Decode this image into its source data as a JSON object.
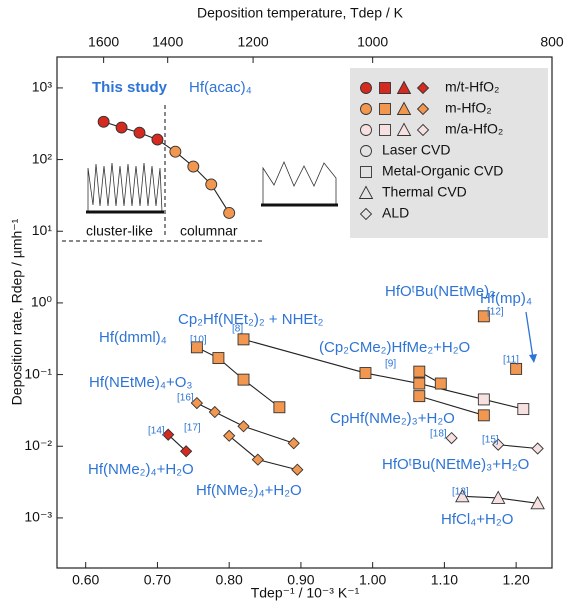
{
  "chart_data": {
    "type": "scatter",
    "title": "Deposition temperature, Tdep / K",
    "x_label": "Tdep⁻¹ / 10⁻³ K⁻¹",
    "y_label": "Deposition rate, Rdep / µmh⁻¹",
    "xlim": [
      0.56,
      1.25
    ],
    "ylim": [
      0.0002,
      2700
    ],
    "log_y": true,
    "xticks": [
      {
        "value": 0.6,
        "label": "0.60"
      },
      {
        "value": 0.7,
        "label": "0.70"
      },
      {
        "value": 0.8,
        "label": "0.80"
      },
      {
        "value": 0.9,
        "label": "0.90"
      },
      {
        "value": 1.0,
        "label": "1.00"
      },
      {
        "value": 1.1,
        "label": "1.10"
      },
      {
        "value": 1.2,
        "label": "1.20"
      }
    ],
    "x2ticks": [
      1600,
      1400,
      1200,
      1000,
      800
    ],
    "yticks": [
      {
        "value": 1000,
        "label": "10³"
      },
      {
        "value": 100,
        "label": "10²"
      },
      {
        "value": 10,
        "label": "10¹"
      },
      {
        "value": 1,
        "label": "10⁰"
      },
      {
        "value": 0.1,
        "label": "10⁻¹"
      },
      {
        "value": 0.01,
        "label": "10⁻²"
      },
      {
        "value": 0.001,
        "label": "10⁻³"
      }
    ],
    "annotations": [
      "This study",
      "Hf(acac)₄",
      "cluster-like",
      "columnar"
    ],
    "series": [
      {
        "marker": "circle",
        "line": true,
        "colors": [
          "#d42a1f",
          "#d42a1f",
          "#d42a1f",
          "#d42a1f",
          "#f2974f",
          "#f2974f",
          "#f2974f",
          "#f2974f"
        ],
        "x": [
          0.625,
          0.65,
          0.675,
          0.7,
          0.725,
          0.75,
          0.775,
          0.8
        ],
        "values": [
          337,
          280,
          237,
          190,
          129,
          80,
          45,
          18
        ]
      },
      {
        "name": "Hf(mp)₄",
        "ref": "[11]",
        "marker": "square",
        "line": false,
        "colors": [
          "#f2974f"
        ],
        "x": [
          1.2
        ],
        "values": [
          0.12
        ]
      },
      {
        "name": "HfOᵗBu(NEtMe)₃",
        "ref": "[12]",
        "marker": "square",
        "line": false,
        "colors": [
          "#f2974f"
        ],
        "x": [
          1.155
        ],
        "values": [
          0.65
        ]
      },
      {
        "name": "Cp₂Hf(NEt₂)₂ + NHEt₂",
        "ref": "[8]",
        "marker": "square",
        "line": true,
        "colors": [
          "#f2974f",
          "#f2974f",
          "#f2974f",
          "#f6e0e0",
          "#f6e0e0"
        ],
        "x": [
          0.82,
          0.99,
          1.065,
          1.155,
          1.21
        ],
        "values": [
          0.31,
          0.105,
          0.075,
          0.045,
          0.033
        ]
      },
      {
        "name": "(Cp₂CMe₂)HfMe₂+H₂O",
        "ref": "[9]",
        "marker": "square",
        "line": true,
        "colors": [
          "#f2974f",
          "#f2974f"
        ],
        "x": [
          1.065,
          1.095
        ],
        "values": [
          0.11,
          0.075
        ]
      },
      {
        "name": "CpHf(NMe₂)₃+H₂O",
        "marker": "square",
        "line": true,
        "colors": [
          "#f2974f",
          "#f2974f"
        ],
        "x": [
          1.065,
          1.155
        ],
        "values": [
          0.05,
          0.027
        ]
      },
      {
        "name": "Hf(dmml)₄",
        "ref": "[10]",
        "marker": "square",
        "line": true,
        "colors": [
          "#f2974f",
          "#f2974f",
          "#f2974f",
          "#f2974f"
        ],
        "x": [
          0.755,
          0.785,
          0.82,
          0.87
        ],
        "values": [
          0.24,
          0.17,
          0.085,
          0.035
        ]
      },
      {
        "name": "Hf(NEtMe)₄+O₃",
        "ref": "[16]",
        "marker": "diamond",
        "line": true,
        "colors": [
          "#f2974f",
          "#f2974f",
          "#f2974f",
          "#f2974f"
        ],
        "x": [
          0.755,
          0.78,
          0.82,
          0.89
        ],
        "values": [
          0.04,
          0.03,
          0.019,
          0.011
        ]
      },
      {
        "name": "Hf(NMe₂)₄+H₂O",
        "ref": "[17]",
        "marker": "diamond",
        "line": true,
        "colors": [
          "#f2974f",
          "#f2974f",
          "#f2974f"
        ],
        "x": [
          0.8,
          0.84,
          0.895
        ],
        "values": [
          0.014,
          0.0065,
          0.0047
        ]
      },
      {
        "name": "Hf(NMe₂)₄+H₂O",
        "ref": "[14]",
        "marker": "diamond",
        "line": true,
        "colors": [
          "#d42a1f",
          "#d42a1f"
        ],
        "x": [
          0.715,
          0.74
        ],
        "values": [
          0.0145,
          0.0085
        ]
      },
      {
        "ref": "[18]",
        "marker": "diamond",
        "line": false,
        "colors": [
          "#f6e0e0"
        ],
        "x": [
          1.11
        ],
        "values": [
          0.013
        ]
      },
      {
        "name": "HfOᵗBu(NEtMe)₃+H₂O",
        "ref": "[15]",
        "marker": "diamond",
        "line": true,
        "colors": [
          "#f6e0e0",
          "#f6e0e0"
        ],
        "x": [
          1.175,
          1.23
        ],
        "values": [
          0.0105,
          0.0093
        ]
      },
      {
        "name": "HfCl₄+H₂O",
        "ref": "[13]",
        "marker": "triangle",
        "line": true,
        "colors": [
          "#f6e0e0",
          "#f6e0e0",
          "#f6e0e0"
        ],
        "x": [
          1.125,
          1.175,
          1.23
        ],
        "values": [
          0.002,
          0.0019,
          0.0016
        ]
      }
    ],
    "legend": {
      "phases": [
        {
          "label": "m/t-HfO₂",
          "color": "#d42a1f"
        },
        {
          "label": "m-HfO₂",
          "color": "#f2974f"
        },
        {
          "label": "m/a-HfO₂",
          "color": "#f6e0e0"
        }
      ],
      "methods": [
        {
          "label": "Laser CVD",
          "marker": "circle"
        },
        {
          "label": "Metal-Organic CVD",
          "marker": "square"
        },
        {
          "label": "Thermal CVD",
          "marker": "triangle"
        },
        {
          "label": "ALD",
          "marker": "diamond"
        }
      ]
    }
  }
}
